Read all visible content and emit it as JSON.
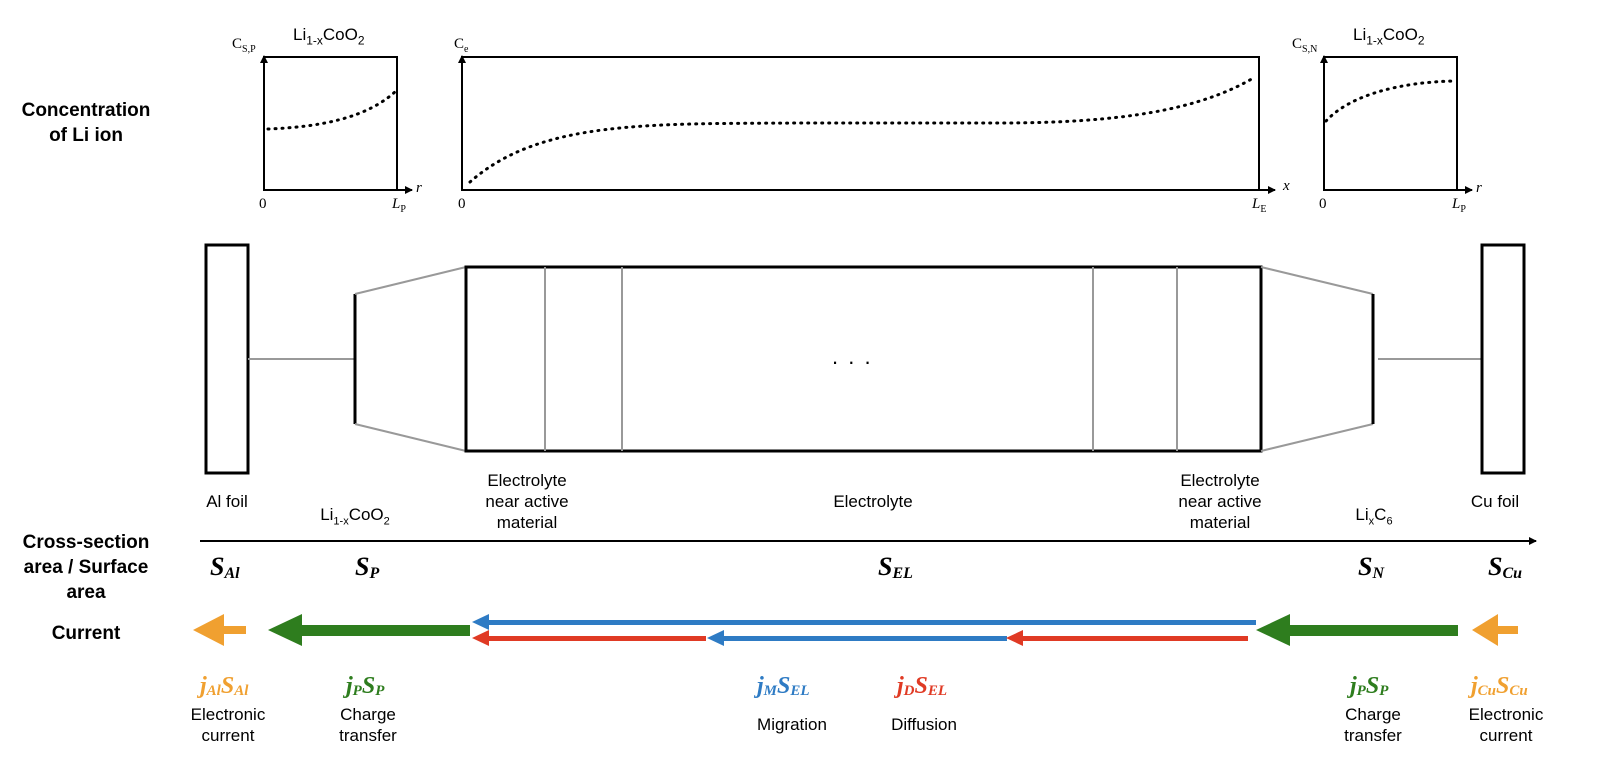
{
  "row_labels": {
    "concentration": [
      "Concentration",
      "of Li ion"
    ],
    "cross_section": [
      "Cross-section",
      "area / Surface",
      "area"
    ],
    "current": "Current"
  },
  "graphs": {
    "positive": {
      "title_base": "Li",
      "title_sub1": "1-x",
      "title_mid": "CoO",
      "title_sub2": "2",
      "y_base": "C",
      "y_sub": "S,P",
      "x_axis": "r",
      "x_zero": "0",
      "x_end_base": "L",
      "x_end_sub": "P"
    },
    "electrolyte": {
      "y_base": "C",
      "y_sub": "e",
      "x_axis": "x",
      "x_zero": "0",
      "x_end_base": "L",
      "x_end_sub": "E"
    },
    "negative": {
      "title_base": "Li",
      "title_sub1": "1-x",
      "title_mid": "CoO",
      "title_sub2": "2",
      "y_base": "C",
      "y_sub": "S,N",
      "x_axis": "r",
      "x_zero": "0",
      "x_end_base": "L",
      "x_end_sub": "P"
    }
  },
  "components": {
    "al_foil": "Al foil",
    "positive_base": "Li",
    "positive_sub1": "1-x",
    "positive_mid": "CoO",
    "positive_sub2": "2",
    "electrolyte_near_left": [
      "Electrolyte",
      "near active",
      "material"
    ],
    "electrolyte": "Electrolyte",
    "electrolyte_near_right": [
      "Electrolyte",
      "near active",
      "material"
    ],
    "negative_base1": "Li",
    "negative_sub1": "x",
    "negative_base2": "C",
    "negative_sub2": "6",
    "cu_foil": "Cu foil",
    "ellipsis": ". . ."
  },
  "areas": {
    "s_al": {
      "base": "S",
      "sub": "Al"
    },
    "s_p": {
      "base": "S",
      "sub": "P"
    },
    "s_el": {
      "base": "S",
      "sub": "EL"
    },
    "s_n": {
      "base": "S",
      "sub": "N"
    },
    "s_cu": {
      "base": "S",
      "sub": "Cu"
    }
  },
  "currents": {
    "al": {
      "j": "j",
      "j_sub": "Al",
      "s": "S",
      "s_sub": "Al",
      "desc": [
        "Electronic",
        "current"
      ],
      "color": "#F0A030"
    },
    "p": {
      "j": "j",
      "j_sub": "P",
      "s": "S",
      "s_sub": "P",
      "desc": [
        "Charge",
        "transfer"
      ],
      "color": "#2E7D1E"
    },
    "migration": {
      "j": "j",
      "j_sub": "M",
      "s": "S",
      "s_sub": "EL",
      "desc": "Migration",
      "color": "#2E7BC4"
    },
    "diffusion": {
      "j": "j",
      "j_sub": "D",
      "s": "S",
      "s_sub": "EL",
      "desc": "Diffusion",
      "color": "#E03A24"
    },
    "n": {
      "j": "j",
      "j_sub": "P",
      "s": "S",
      "s_sub": "P",
      "desc": [
        "Charge",
        "transfer"
      ],
      "color": "#2E7D1E"
    },
    "cu": {
      "j": "j",
      "j_sub": "Cu",
      "s": "S",
      "s_sub": "Cu",
      "desc": [
        "Electronic",
        "current"
      ],
      "color": "#F0A030"
    }
  }
}
